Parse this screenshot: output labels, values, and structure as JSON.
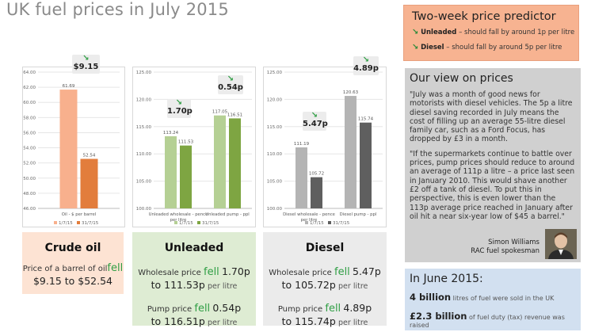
{
  "page": {
    "title": "UK fuel prices in July 2015"
  },
  "predictor": {
    "title": "Two-week price predictor",
    "rows": [
      {
        "fuel": "Unleaded",
        "text": "– should fall by around 1p per litre"
      },
      {
        "fuel": "Diesel",
        "text": "– should fall by around 5p per litre"
      }
    ]
  },
  "view": {
    "title": "Our view on prices",
    "quote1": "\"July was a month of good news for motorists with diesel vehicles. The 5p a litre diesel saving recorded in July means the cost of filling up an average 55-litre diesel family car, such as a Ford Focus, has dropped by £3 in a month.",
    "quote2": "\"If the supermarkets continue to battle over prices, pump prices should reduce to around an average of 111p a litre – a price last seen in January 2010. This would shave another £2 off a tank of diesel. To put this in perspective, this is even lower than the 113p average price reached in January after oil hit a near six-year low of $45 a barrel.\"",
    "name": "Simon Williams",
    "role": "RAC fuel spokesman"
  },
  "june": {
    "title": "In June 2015:",
    "stat1_value": "4 billion",
    "stat1_text": "litres of fuel were sold in the UK",
    "stat2_value": "£2.3 billion",
    "stat2_text": "of fuel duty (tax) revenue was raised"
  },
  "cards": {
    "crude": {
      "title": "Crude oil",
      "line1": "Price of a barrel of oil",
      "fell": "fell",
      "line2": "$9.15 to $52.54"
    },
    "unleaded": {
      "title": "Unleaded",
      "w_pre": "Wholesale price",
      "w_fell": "fell",
      "w_amt": "1.70p",
      "w_to": "to 111.53p",
      "w_unit": "per litre",
      "p_pre": "Pump price",
      "p_fell": "fell",
      "p_amt": "0.54p",
      "p_to": "to 116.51p",
      "p_unit": "per litre"
    },
    "diesel": {
      "title": "Diesel",
      "w_pre": "Wholesale price",
      "w_fell": "fell",
      "w_amt": "5.47p",
      "w_to": "to 105.72p",
      "w_unit": "per litre",
      "p_pre": "Pump price",
      "p_fell": "fell",
      "p_amt": "4.89p",
      "p_to": "to 115.74p",
      "p_unit": "per litre"
    }
  },
  "colors": {
    "crude_a": "#f8b08d",
    "crude_b": "#e27d3c",
    "unl_a": "#b5d094",
    "unl_b": "#7ea542",
    "dsl_a": "#b4b4b4",
    "dsl_b": "#5f5f5f",
    "down_arrow": "#2f9e44"
  },
  "chart_data": [
    {
      "type": "bar",
      "categories": [
        "Oil - $ per barrel"
      ],
      "series": [
        {
          "name": "1/7/15",
          "values": [
            61.69
          ]
        },
        {
          "name": "31/7/15",
          "values": [
            52.54
          ]
        }
      ],
      "ylim": [
        46,
        64
      ],
      "yticks": [
        "46.00",
        "48.00",
        "50.00",
        "52.00",
        "54.00",
        "56.00",
        "58.00",
        "60.00",
        "62.00",
        "64.00"
      ],
      "annotation": "$9.15",
      "legend": "bottom"
    },
    {
      "type": "bar",
      "categories": [
        "Unleaded wholesale - pence per litre",
        "Unleaded pump - ppl"
      ],
      "series": [
        {
          "name": "1/7/15",
          "values": [
            113.24,
            117.05
          ]
        },
        {
          "name": "31/7/15",
          "values": [
            111.53,
            116.51
          ]
        }
      ],
      "ylim": [
        100,
        125
      ],
      "yticks": [
        "100.00",
        "105.00",
        "110.00",
        "115.00",
        "120.00",
        "125.00"
      ],
      "annotations": [
        "1.70p",
        "0.54p"
      ],
      "legend": "bottom"
    },
    {
      "type": "bar",
      "categories": [
        "Diesel wholesale - pence per litre",
        "Diesel pump - ppl"
      ],
      "series": [
        {
          "name": "1/7/15",
          "values": [
            111.19,
            120.63
          ]
        },
        {
          "name": "31/7/15",
          "values": [
            105.72,
            115.74
          ]
        }
      ],
      "ylim": [
        100,
        125
      ],
      "yticks": [
        "100.00",
        "105.00",
        "110.00",
        "115.00",
        "120.00",
        "125.00"
      ],
      "annotations": [
        "5.47p",
        "4.89p"
      ],
      "legend": "bottom"
    }
  ]
}
